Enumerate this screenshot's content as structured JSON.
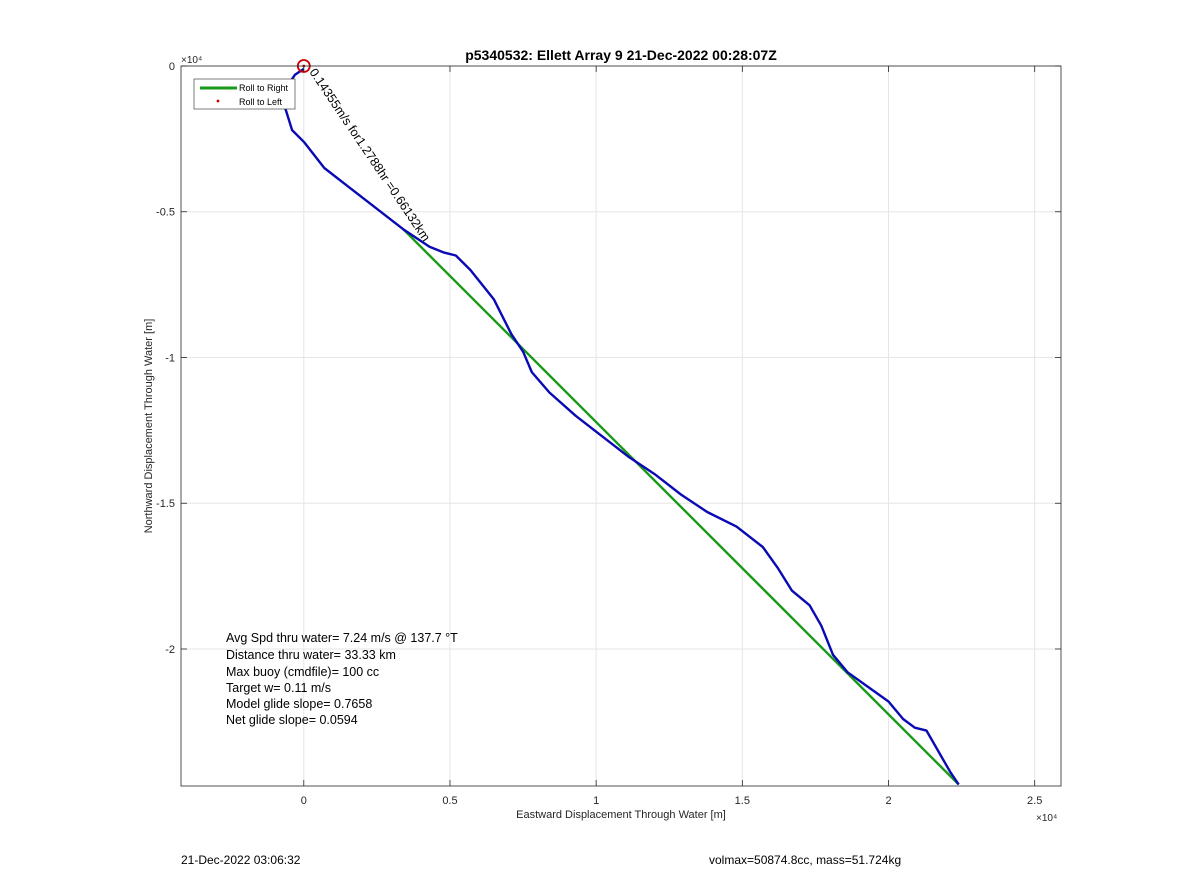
{
  "chart_data": {
    "type": "line",
    "title": "p5340532: Ellett Array 9 21-Dec-2022 00:28:07Z",
    "xlabel": "Eastward Displacement Through Water [m]",
    "ylabel": "Northward Displacement Through Water [m]",
    "x_exponent": "×10⁴",
    "y_exponent": "×10⁴",
    "xlim": [
      -4200,
      25900
    ],
    "ylim": [
      -24700,
      0
    ],
    "x_ticks": [
      {
        "value": 0,
        "label": "0"
      },
      {
        "value": 5000,
        "label": "0.5"
      },
      {
        "value": 10000,
        "label": "1"
      },
      {
        "value": 15000,
        "label": "1.5"
      },
      {
        "value": 20000,
        "label": "2"
      },
      {
        "value": 25000,
        "label": "2.5"
      }
    ],
    "y_ticks": [
      {
        "value": 0,
        "label": "0"
      },
      {
        "value": -5000,
        "label": "-0.5"
      },
      {
        "value": -10000,
        "label": "-1"
      },
      {
        "value": -15000,
        "label": "-1.5"
      },
      {
        "value": -20000,
        "label": "-2"
      }
    ],
    "grid": true,
    "legend_placement": "top-left",
    "series": [
      {
        "name": "Roll to Right",
        "color": "#1a9a1a",
        "x": [
          3400,
          22400
        ],
        "y": [
          -5600,
          -24650
        ]
      },
      {
        "color": "#0a0ab4",
        "x": [
          0,
          -300,
          -700,
          -680,
          -400,
          0,
          700,
          1600,
          2500,
          3400,
          4300,
          4800,
          5200,
          5700,
          6500,
          7100,
          7500,
          7800,
          8400,
          9300,
          10200,
          11100,
          12000,
          12900,
          13800,
          14800,
          15700,
          16200,
          16700,
          17300,
          17700,
          18100,
          18600,
          19300,
          20000,
          20500,
          20900,
          21300,
          21700,
          22100,
          22400
        ],
        "y": [
          -100,
          -300,
          -900,
          -1300,
          -2200,
          -2600,
          -3500,
          -4200,
          -4900,
          -5600,
          -6200,
          -6400,
          -6500,
          -7000,
          -8000,
          -9200,
          -9800,
          -10500,
          -11200,
          -12000,
          -12700,
          -13400,
          -14000,
          -14700,
          -15300,
          -15800,
          -16500,
          -17200,
          -18000,
          -18500,
          -19200,
          -20200,
          -20800,
          -21300,
          -21800,
          -22400,
          -22700,
          -22800,
          -23500,
          -24200,
          -24650
        ]
      },
      {
        "name": "Roll to Left",
        "type": "scatter",
        "color": "#d40000",
        "x": [
          0
        ],
        "y": [
          0
        ]
      }
    ],
    "annotations": {
      "current_label": "0.14355m/s for1.2788hr =0.66132km",
      "info_lines": [
        "Avg Spd thru water=  7.24 m/s @ 137.7 °T",
        "Distance thru water= 33.33 km",
        "Max buoy (cmdfile)= 100 cc",
        "Target w= 0.11 m/s",
        "Model glide slope= 0.7658",
        "Net glide slope= 0.0594"
      ]
    }
  },
  "footer": {
    "left": "21-Dec-2022 03:06:32",
    "right": "volmax=50874.8cc, mass=51.724kg"
  },
  "colors": {
    "track": "#0a0ab4",
    "ideal": "#1a9a1a",
    "start_marker": "#cc0000",
    "grid": "#e6e6e6",
    "axis": "#262626"
  }
}
